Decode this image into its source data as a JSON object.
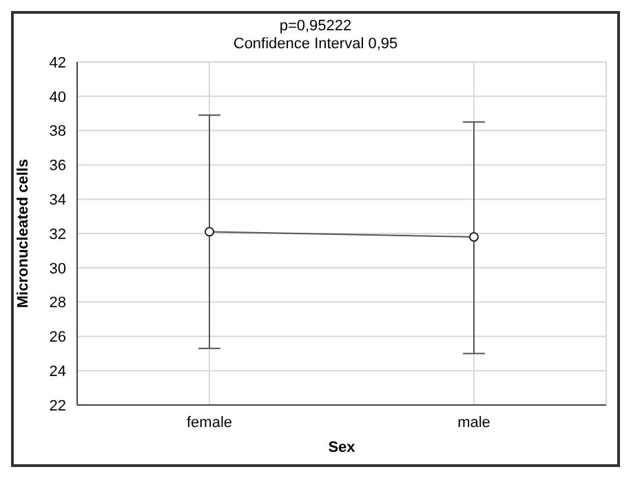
{
  "chart_data": {
    "type": "line",
    "title": "p=0,95222",
    "subtitle": "Confidence Interval 0,95",
    "xlabel": "Sex",
    "ylabel": "Micronucleated cells",
    "categories": [
      "female",
      "male"
    ],
    "series": [
      {
        "color": "#555555",
        "values": [
          32.1,
          31.8
        ],
        "errors": [
          [
            25.3,
            38.9
          ],
          [
            25.0,
            38.5
          ]
        ]
      }
    ],
    "ylim": [
      22,
      42
    ],
    "yticks": [
      22,
      24,
      26,
      28,
      30,
      32,
      34,
      36,
      38,
      40,
      42
    ],
    "grid": true,
    "marker": "circle",
    "line_style": "solid"
  }
}
